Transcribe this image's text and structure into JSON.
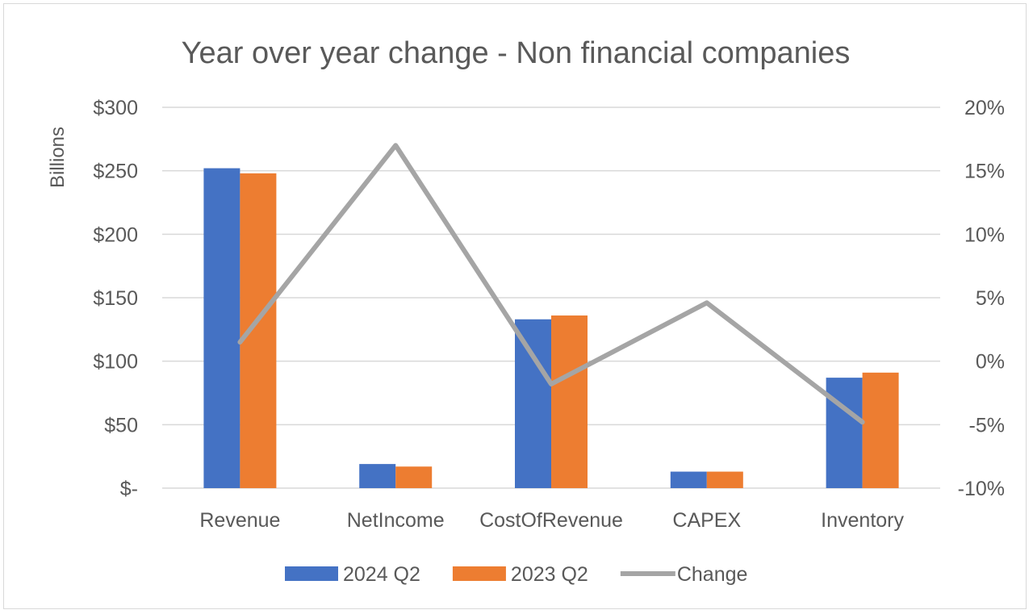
{
  "chart_data": {
    "type": "bar",
    "title": "Year over year change - Non financial companies",
    "ylabel": "Billions",
    "y2label": "",
    "categories": [
      "Revenue",
      "NetIncome",
      "CostOfRevenue",
      "CAPEX",
      "Inventory"
    ],
    "ylim": [
      0,
      300
    ],
    "y_ticks": [
      0,
      50,
      100,
      150,
      200,
      250,
      300
    ],
    "y_tick_labels": [
      "$-",
      "$50",
      "$100",
      "$150",
      "$200",
      "$250",
      "$300"
    ],
    "y2lim": [
      -0.1,
      0.2
    ],
    "y2_ticks": [
      -0.1,
      -0.05,
      0,
      0.05,
      0.1,
      0.15,
      0.2
    ],
    "y2_tick_labels": [
      "-10%",
      "-5%",
      "0%",
      "5%",
      "10%",
      "15%",
      "20%"
    ],
    "grid": true,
    "legend_position": "bottom",
    "series": [
      {
        "name": "2024 Q2",
        "type": "bar",
        "color": "#4472C4",
        "values": [
          252,
          19,
          133,
          13,
          87
        ]
      },
      {
        "name": "2023 Q2",
        "type": "bar",
        "color": "#ED7D31",
        "values": [
          248,
          17,
          136,
          13,
          91
        ]
      },
      {
        "name": "Change",
        "type": "line",
        "axis": "secondary",
        "color": "#A5A5A5",
        "values": [
          0.015,
          0.17,
          -0.018,
          0.046,
          -0.048
        ]
      }
    ]
  }
}
